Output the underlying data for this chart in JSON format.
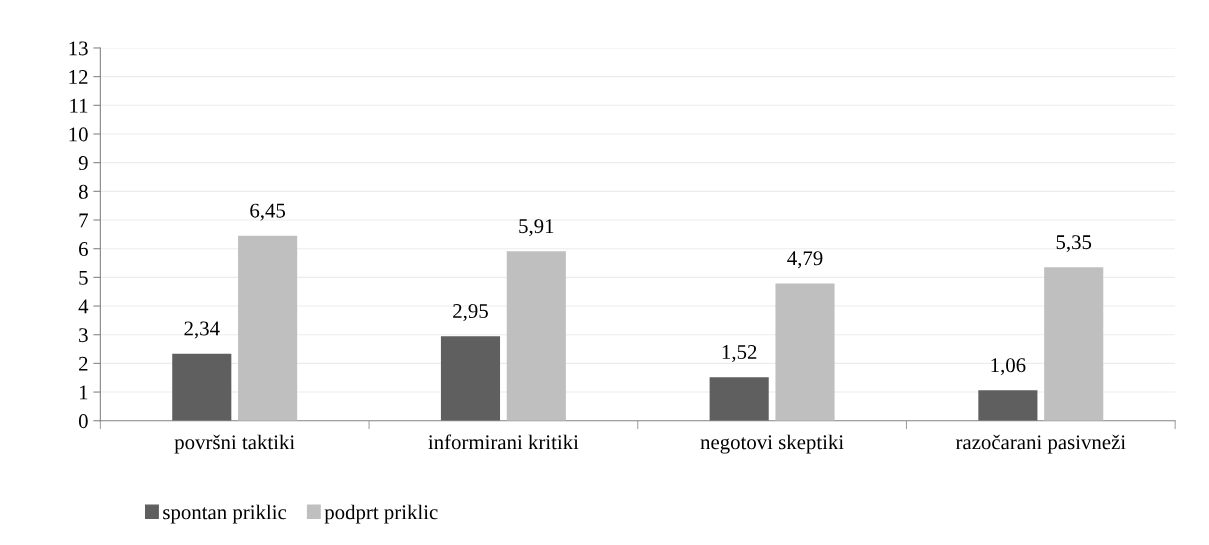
{
  "chart_data": {
    "type": "bar",
    "categories": [
      "površni taktiki",
      "informirani kritiki",
      "negotovi skeptiki",
      "razočarani pasivneži"
    ],
    "series": [
      {
        "name": "spontan priklic",
        "color": "#5f5f5f",
        "values": [
          2.34,
          2.95,
          1.52,
          1.06
        ],
        "value_labels": [
          "2,34",
          "2,95",
          "1,52",
          "1,06"
        ]
      },
      {
        "name": "podprt priklic",
        "color": "#bfbfbf",
        "values": [
          6.45,
          5.91,
          4.79,
          5.35
        ],
        "value_labels": [
          "6,45",
          "5,91",
          "4,79",
          "5,35"
        ]
      }
    ],
    "ylim": [
      0,
      13
    ],
    "yticks": [
      0,
      1,
      2,
      3,
      4,
      5,
      6,
      7,
      8,
      9,
      10,
      11,
      12,
      13
    ],
    "grid": "y",
    "legend": "bottom left"
  }
}
